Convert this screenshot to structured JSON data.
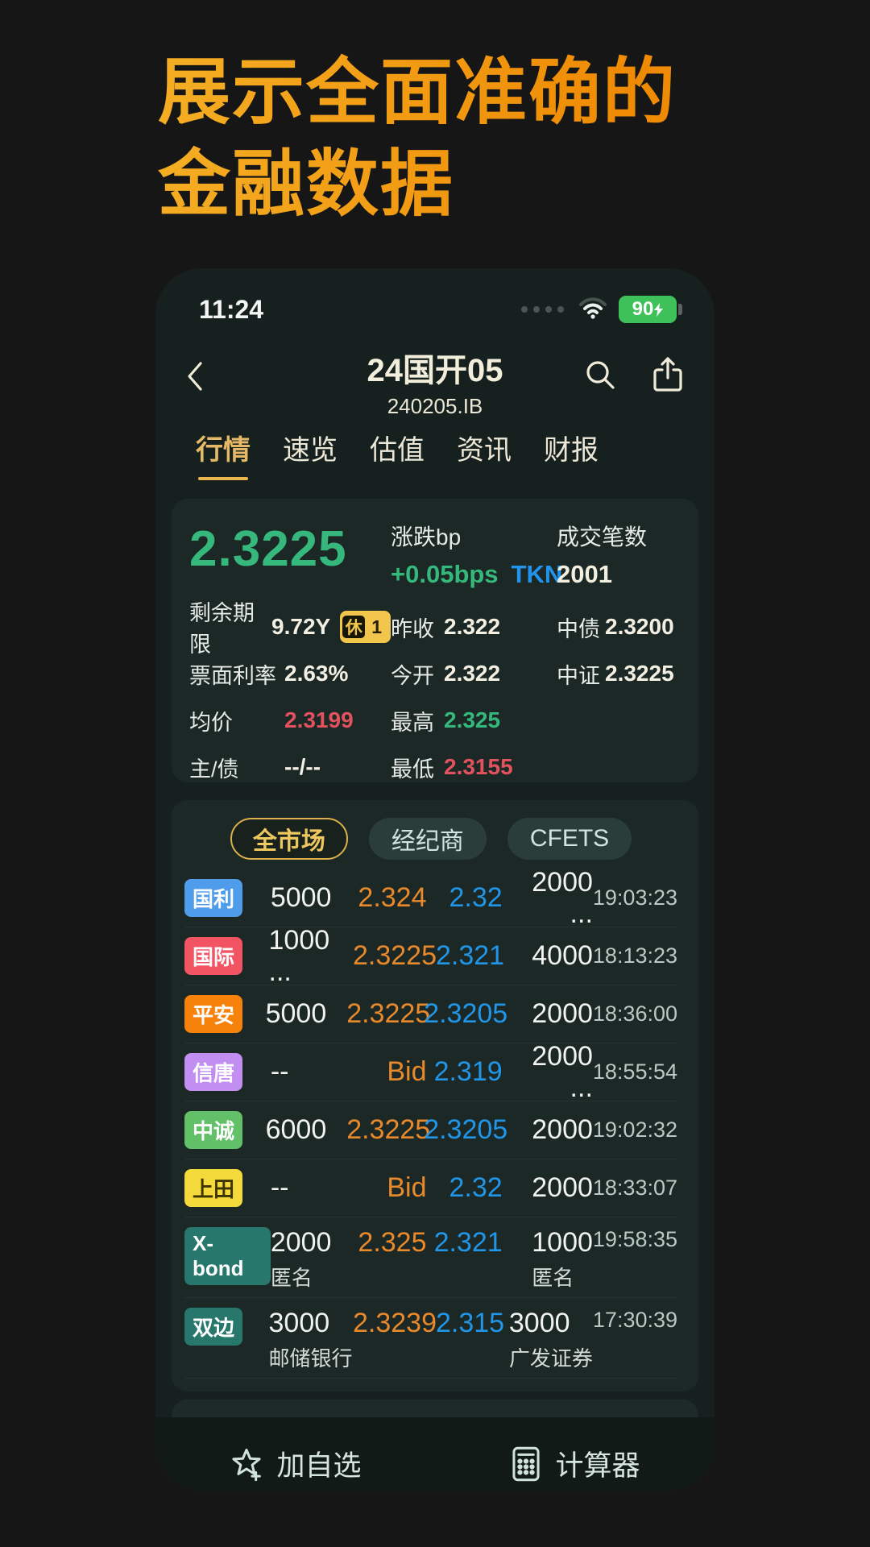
{
  "headline": {
    "line1": "展示全面准确的",
    "line2": "金融数据"
  },
  "status_bar": {
    "time": "11:24",
    "battery_percent": "90"
  },
  "nav": {
    "title": "24国开05",
    "subtitle": "240205.IB"
  },
  "tabs": [
    {
      "label": "行情",
      "active": true
    },
    {
      "label": "速览",
      "active": false
    },
    {
      "label": "估值",
      "active": false
    },
    {
      "label": "资讯",
      "active": false
    },
    {
      "label": "财报",
      "active": false
    }
  ],
  "quote": {
    "price": "2.3225",
    "change_label": "涨跌bp",
    "change_value": "+0.05bps",
    "change_tag": "TKN",
    "trades_label": "成交笔数",
    "trades_value": "2001",
    "details_rows": [
      {
        "c1": {
          "label": "剩余期限",
          "value": "9.72Y",
          "badge": [
            "休",
            "1"
          ]
        },
        "c2": {
          "label": "昨收",
          "value": "2.322"
        },
        "c3": {
          "label": "中债",
          "value": "2.3200"
        }
      },
      {
        "c1": {
          "label": "票面利率",
          "value": "2.63%"
        },
        "c2": {
          "label": "今开",
          "value": "2.322"
        },
        "c3": {
          "label": "中证",
          "value": "2.3225"
        }
      },
      {
        "c1": {
          "label": "均价",
          "value": "2.3199",
          "color": "red"
        },
        "c2": {
          "label": "最高",
          "value": "2.325",
          "color": "green"
        }
      },
      {
        "c1": {
          "label": "主/债",
          "value": "--/--"
        },
        "c2": {
          "label": "最低",
          "value": "2.3155",
          "color": "red"
        }
      }
    ]
  },
  "market": {
    "filters": [
      {
        "label": "全市场",
        "active": true
      },
      {
        "label": "经纪商",
        "active": false
      },
      {
        "label": "CFETS",
        "active": false
      }
    ],
    "rows": [
      {
        "badge": "国利",
        "badge_color": "#4f9cea",
        "vol1": "5000",
        "bid": "2.324",
        "ask": "2.32",
        "vol2": "2000 ...",
        "time": "19:03:23"
      },
      {
        "badge": "国际",
        "badge_color": "#f25463",
        "vol1": "1000 ...",
        "bid": "2.3225",
        "ask": "2.321",
        "vol2": "4000",
        "time": "18:13:23"
      },
      {
        "badge": "平安",
        "badge_color": "#f6820c",
        "vol1": "5000",
        "bid": "2.3225",
        "ask": "2.3205",
        "vol2": "2000",
        "time": "18:36:00"
      },
      {
        "badge": "信唐",
        "badge_color": "#c28ef2",
        "vol1": "--",
        "bid": "Bid",
        "ask": "2.319",
        "vol2": "2000 ...",
        "time": "18:55:54"
      },
      {
        "badge": "中诚",
        "badge_color": "#61c068",
        "vol1": "6000",
        "bid": "2.3225",
        "ask": "2.3205",
        "vol2": "2000",
        "time": "19:02:32"
      },
      {
        "badge": "上田",
        "badge_color": "#f3d939",
        "badge_text_color": "#3c3400",
        "vol1": "--",
        "bid": "Bid",
        "ask": "2.32",
        "vol2": "2000",
        "time": "18:33:07"
      },
      {
        "badge": "X-bond",
        "badge_color": "#27776d",
        "vol1": "2000",
        "vol1_sub": "匿名",
        "bid": "2.325",
        "ask": "2.321",
        "vol2": "1000",
        "vol2_sub": "匿名",
        "time": "19:58:35"
      },
      {
        "badge": "双边",
        "badge_color": "#27776d",
        "vol1": "3000",
        "vol1_sub": "邮储银行",
        "bid": "2.3239",
        "ask": "2.315",
        "vol2": "3000",
        "vol2_sub": "广发证券",
        "time": "17:30:39"
      }
    ]
  },
  "footer": {
    "watchlist": "加自选",
    "calculator": "计算器"
  },
  "colors": {
    "gold": "#e9b64d",
    "green": "#36b87d",
    "orange": "#e8892b",
    "blue": "#2196e8",
    "red": "#e2525e",
    "battery_green": "#3fc15a"
  }
}
